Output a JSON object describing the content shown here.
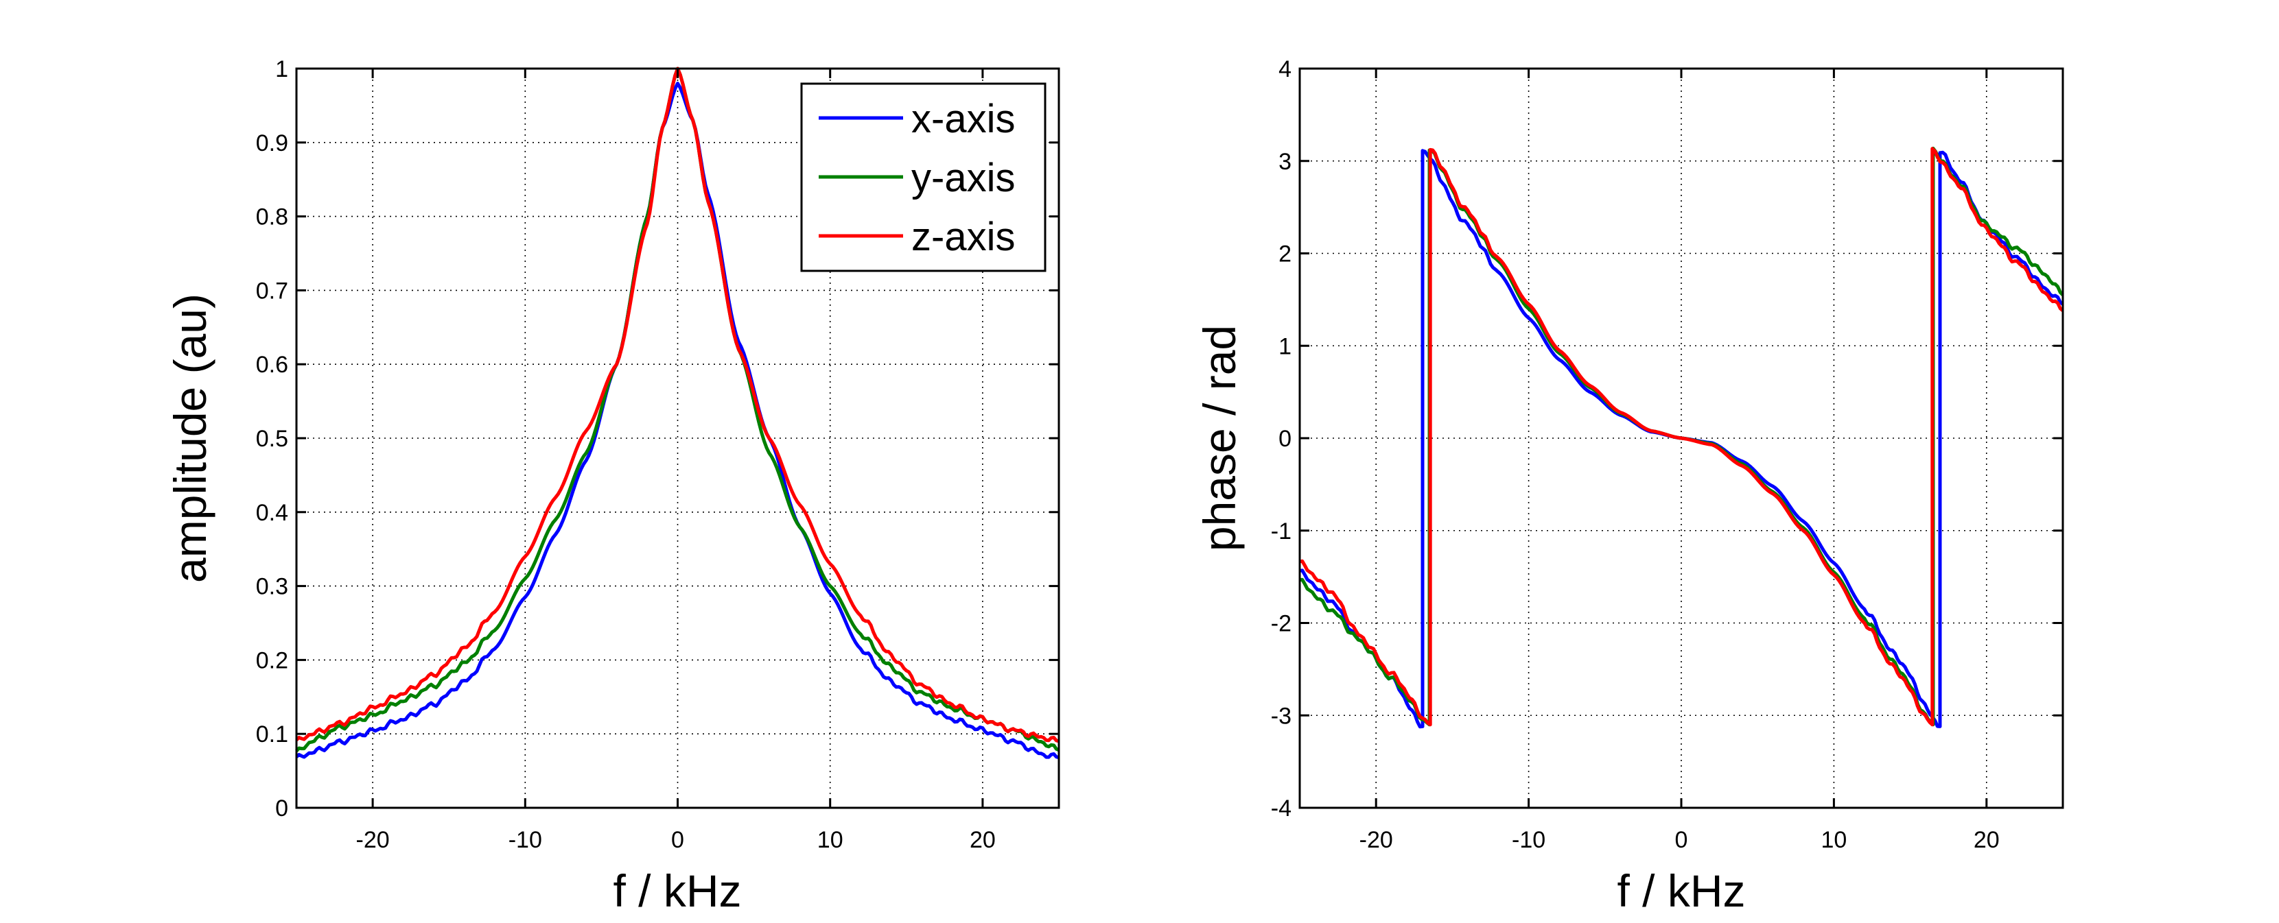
{
  "chart_data": [
    {
      "id": "amplitude",
      "type": "line",
      "title": "",
      "xlabel": "f / kHz",
      "ylabel": "amplitude (au)",
      "xlim": [
        -25,
        25
      ],
      "ylim": [
        0,
        1
      ],
      "xticks": [
        -20,
        -10,
        0,
        10,
        20
      ],
      "xtick_labels": [
        "-20",
        "-10",
        "0",
        "10",
        "20"
      ],
      "yticks": [
        0,
        0.1,
        0.2,
        0.3,
        0.4,
        0.5,
        0.6,
        0.7,
        0.8,
        0.9,
        1
      ],
      "ytick_labels": [
        "0",
        "0.1",
        "0.2",
        "0.3",
        "0.4",
        "0.5",
        "0.6",
        "0.7",
        "0.8",
        "0.9",
        "1"
      ],
      "grid": true,
      "legend": {
        "placement": "top-right",
        "entries": [
          "x-axis",
          "y-axis",
          "z-axis"
        ]
      },
      "x": [
        -25,
        -24,
        -22,
        -20,
        -18,
        -16,
        -14,
        -12,
        -10,
        -8,
        -6,
        -4,
        -2,
        -1,
        0,
        1,
        2,
        4,
        6,
        8,
        10,
        12,
        14,
        16,
        18,
        20,
        22,
        24,
        25
      ],
      "series": [
        {
          "name": "x-axis",
          "color": "#0000ff",
          "values": [
            0.067,
            0.075,
            0.09,
            0.104,
            0.12,
            0.14,
            0.17,
            0.215,
            0.285,
            0.37,
            0.47,
            0.6,
            0.8,
            0.92,
            0.98,
            0.93,
            0.83,
            0.63,
            0.5,
            0.38,
            0.29,
            0.215,
            0.17,
            0.14,
            0.12,
            0.105,
            0.09,
            0.072,
            0.068
          ]
        },
        {
          "name": "y-axis",
          "color": "#008000",
          "values": [
            0.075,
            0.09,
            0.11,
            0.125,
            0.145,
            0.165,
            0.195,
            0.24,
            0.31,
            0.39,
            0.48,
            0.6,
            0.8,
            0.92,
            1.0,
            0.93,
            0.82,
            0.62,
            0.48,
            0.38,
            0.3,
            0.235,
            0.19,
            0.155,
            0.135,
            0.12,
            0.105,
            0.088,
            0.078
          ]
        },
        {
          "name": "z-axis",
          "color": "#ff0000",
          "values": [
            0.09,
            0.1,
            0.115,
            0.135,
            0.155,
            0.18,
            0.215,
            0.265,
            0.34,
            0.42,
            0.51,
            0.6,
            0.79,
            0.92,
            1.0,
            0.93,
            0.82,
            0.62,
            0.5,
            0.41,
            0.33,
            0.26,
            0.205,
            0.165,
            0.14,
            0.12,
            0.105,
            0.095,
            0.09
          ]
        }
      ]
    },
    {
      "id": "phase",
      "type": "line",
      "title": "",
      "xlabel": "f / kHz",
      "ylabel": "phase / rad",
      "xlim": [
        -25,
        25
      ],
      "ylim": [
        -4,
        4
      ],
      "xticks": [
        -20,
        -10,
        0,
        10,
        20
      ],
      "xtick_labels": [
        "-20",
        "-10",
        "0",
        "10",
        "20"
      ],
      "yticks": [
        -4,
        -3,
        -2,
        -1,
        0,
        1,
        2,
        3,
        4
      ],
      "ytick_labels": [
        "-4",
        "-3",
        "-2",
        "-1",
        "0",
        "1",
        "2",
        "3",
        "4"
      ],
      "grid": true,
      "series": [
        {
          "name": "x-axis",
          "color": "#0000ff",
          "points": [
            [
              -25,
              -1.45
            ],
            [
              -23,
              -1.75
            ],
            [
              -21,
              -2.2
            ],
            [
              -19,
              -2.6
            ],
            [
              -16.95,
              -3.12
            ],
            [
              -16.95,
              3.12
            ],
            [
              -14,
              2.3
            ],
            [
              -12,
              1.8
            ],
            [
              -10,
              1.3
            ],
            [
              -8,
              0.85
            ],
            [
              -6,
              0.5
            ],
            [
              -4,
              0.25
            ],
            [
              -2,
              0.07
            ],
            [
              0,
              0.0
            ],
            [
              2,
              -0.05
            ],
            [
              4,
              -0.25
            ],
            [
              6,
              -0.52
            ],
            [
              8,
              -0.9
            ],
            [
              10,
              -1.35
            ],
            [
              12,
              -1.85
            ],
            [
              14,
              -2.35
            ],
            [
              16.95,
              -3.12
            ],
            [
              16.95,
              3.12
            ],
            [
              18,
              2.85
            ],
            [
              20,
              2.3
            ],
            [
              22,
              1.95
            ],
            [
              24,
              1.6
            ],
            [
              25,
              1.45
            ]
          ]
        },
        {
          "name": "y-axis",
          "color": "#008000",
          "points": [
            [
              -25,
              -1.55
            ],
            [
              -23,
              -1.85
            ],
            [
              -21,
              -2.2
            ],
            [
              -19,
              -2.6
            ],
            [
              -16.5,
              -3.1
            ],
            [
              -16.5,
              3.12
            ],
            [
              -14,
              2.42
            ],
            [
              -12,
              1.92
            ],
            [
              -10,
              1.4
            ],
            [
              -8,
              0.92
            ],
            [
              -6,
              0.55
            ],
            [
              -4,
              0.27
            ],
            [
              -2,
              0.08
            ],
            [
              0,
              0.0
            ],
            [
              2,
              -0.06
            ],
            [
              4,
              -0.28
            ],
            [
              6,
              -0.58
            ],
            [
              8,
              -0.97
            ],
            [
              10,
              -1.45
            ],
            [
              12,
              -1.95
            ],
            [
              14,
              -2.45
            ],
            [
              16.5,
              -3.1
            ],
            [
              16.5,
              3.12
            ],
            [
              18,
              2.8
            ],
            [
              20,
              2.3
            ],
            [
              22,
              2.05
            ],
            [
              24,
              1.75
            ],
            [
              25,
              1.55
            ]
          ]
        },
        {
          "name": "z-axis",
          "color": "#ff0000",
          "points": [
            [
              -25,
              -1.35
            ],
            [
              -23,
              -1.65
            ],
            [
              -21,
              -2.15
            ],
            [
              -19,
              -2.55
            ],
            [
              -16.45,
              -3.1
            ],
            [
              -16.45,
              3.12
            ],
            [
              -14,
              2.45
            ],
            [
              -12,
              1.95
            ],
            [
              -10,
              1.45
            ],
            [
              -8,
              0.95
            ],
            [
              -6,
              0.57
            ],
            [
              -4,
              0.28
            ],
            [
              -2,
              0.08
            ],
            [
              0,
              0.0
            ],
            [
              2,
              -0.07
            ],
            [
              4,
              -0.3
            ],
            [
              6,
              -0.6
            ],
            [
              8,
              -1.0
            ],
            [
              10,
              -1.48
            ],
            [
              12,
              -2.0
            ],
            [
              14,
              -2.5
            ],
            [
              16.45,
              -3.1
            ],
            [
              16.45,
              3.12
            ],
            [
              18,
              2.78
            ],
            [
              20,
              2.25
            ],
            [
              22,
              1.9
            ],
            [
              24,
              1.55
            ],
            [
              25,
              1.38
            ]
          ]
        }
      ]
    }
  ]
}
